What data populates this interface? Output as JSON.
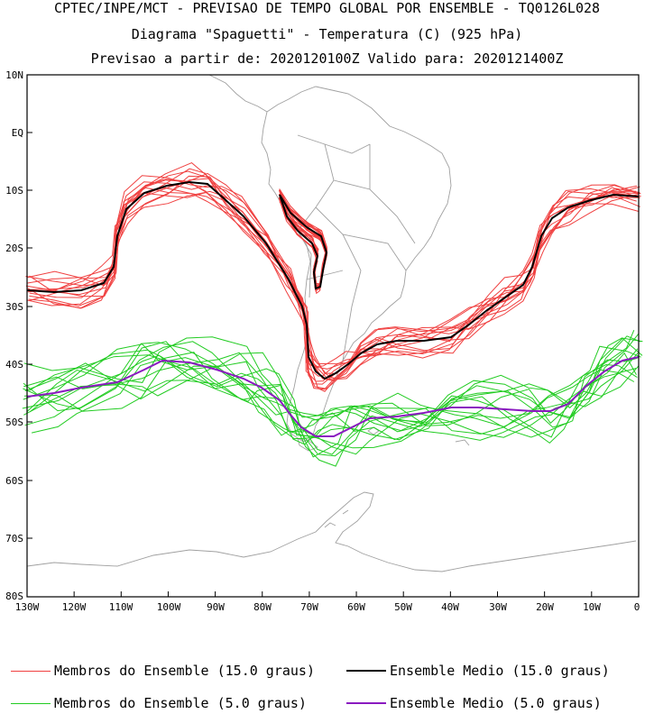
{
  "titles": {
    "line1": "CPTEC/INPE/MCT - PREVISAO DE TEMPO GLOBAL POR ENSEMBLE - TQ0126L028",
    "line2": "Diagrama \"Spaguetti\" - Temperatura (C) (925 hPa)",
    "line3": "Previsao a partir de: 2020120100Z  Valido para: 2020121400Z"
  },
  "map": {
    "lat_labels": [
      "10N",
      "EQ",
      "10S",
      "20S",
      "30S",
      "40S",
      "50S",
      "60S",
      "70S",
      "80S"
    ],
    "lon_labels": [
      "130W",
      "120W",
      "110W",
      "100W",
      "90W",
      "80W",
      "70W",
      "60W",
      "50W",
      "40W",
      "30W",
      "20W",
      "10W",
      "0"
    ],
    "lat_range": [
      -80,
      10
    ],
    "lon_range": [
      -130,
      0
    ],
    "colors": {
      "member_15": "#f04040",
      "mean_15": "#000000",
      "member_5": "#22cc22",
      "mean_5": "#8a1ac0",
      "coast": "#a0a0a0"
    }
  },
  "legend": {
    "member_15_label": "Membros do Ensemble (15.0 graus)",
    "mean_15_label": "Ensemble Medio (15.0 graus)",
    "member_5_label": "Membros do Ensemble (5.0 graus)",
    "mean_5_label": "Ensemble Medio (5.0 graus)"
  }
}
